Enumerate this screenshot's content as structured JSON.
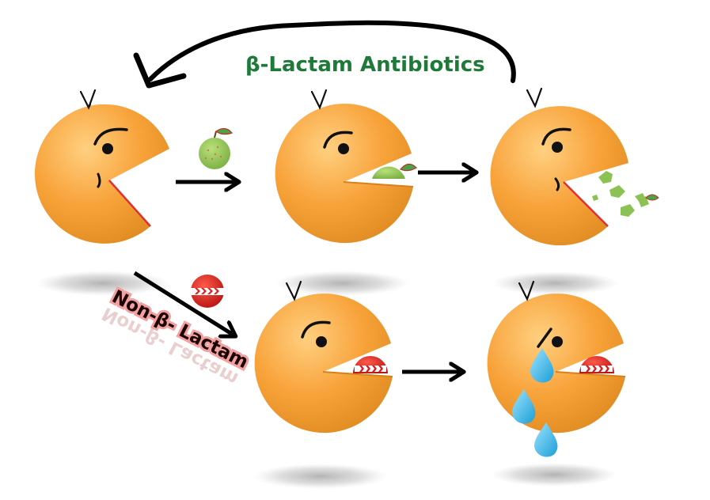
{
  "labels": {
    "beta_lactam": "β-Lactam Antibiotics",
    "non_beta_lactam": "Non-β- Lactam"
  },
  "colors": {
    "pacman_light": "#ffc266",
    "pacman_mid": "#f7a033",
    "pacman_dark": "#d9801a",
    "antibiotic_green": "#8cc254",
    "antibiotic_dot": "#e06040",
    "leaf": "#3f9a3f",
    "blocker_red": "#d42020",
    "tear": "#3ab6e8",
    "arrow": "#000000",
    "beta_label": "#1f7a3a",
    "non_label_glow": "#f2a0a0"
  },
  "icons": {
    "pacman": "pacman-bacterium-icon",
    "antibiotic": "green-fruit-pill-icon",
    "blocker": "red-striped-pill-icon",
    "tear": "teardrop-icon"
  }
}
